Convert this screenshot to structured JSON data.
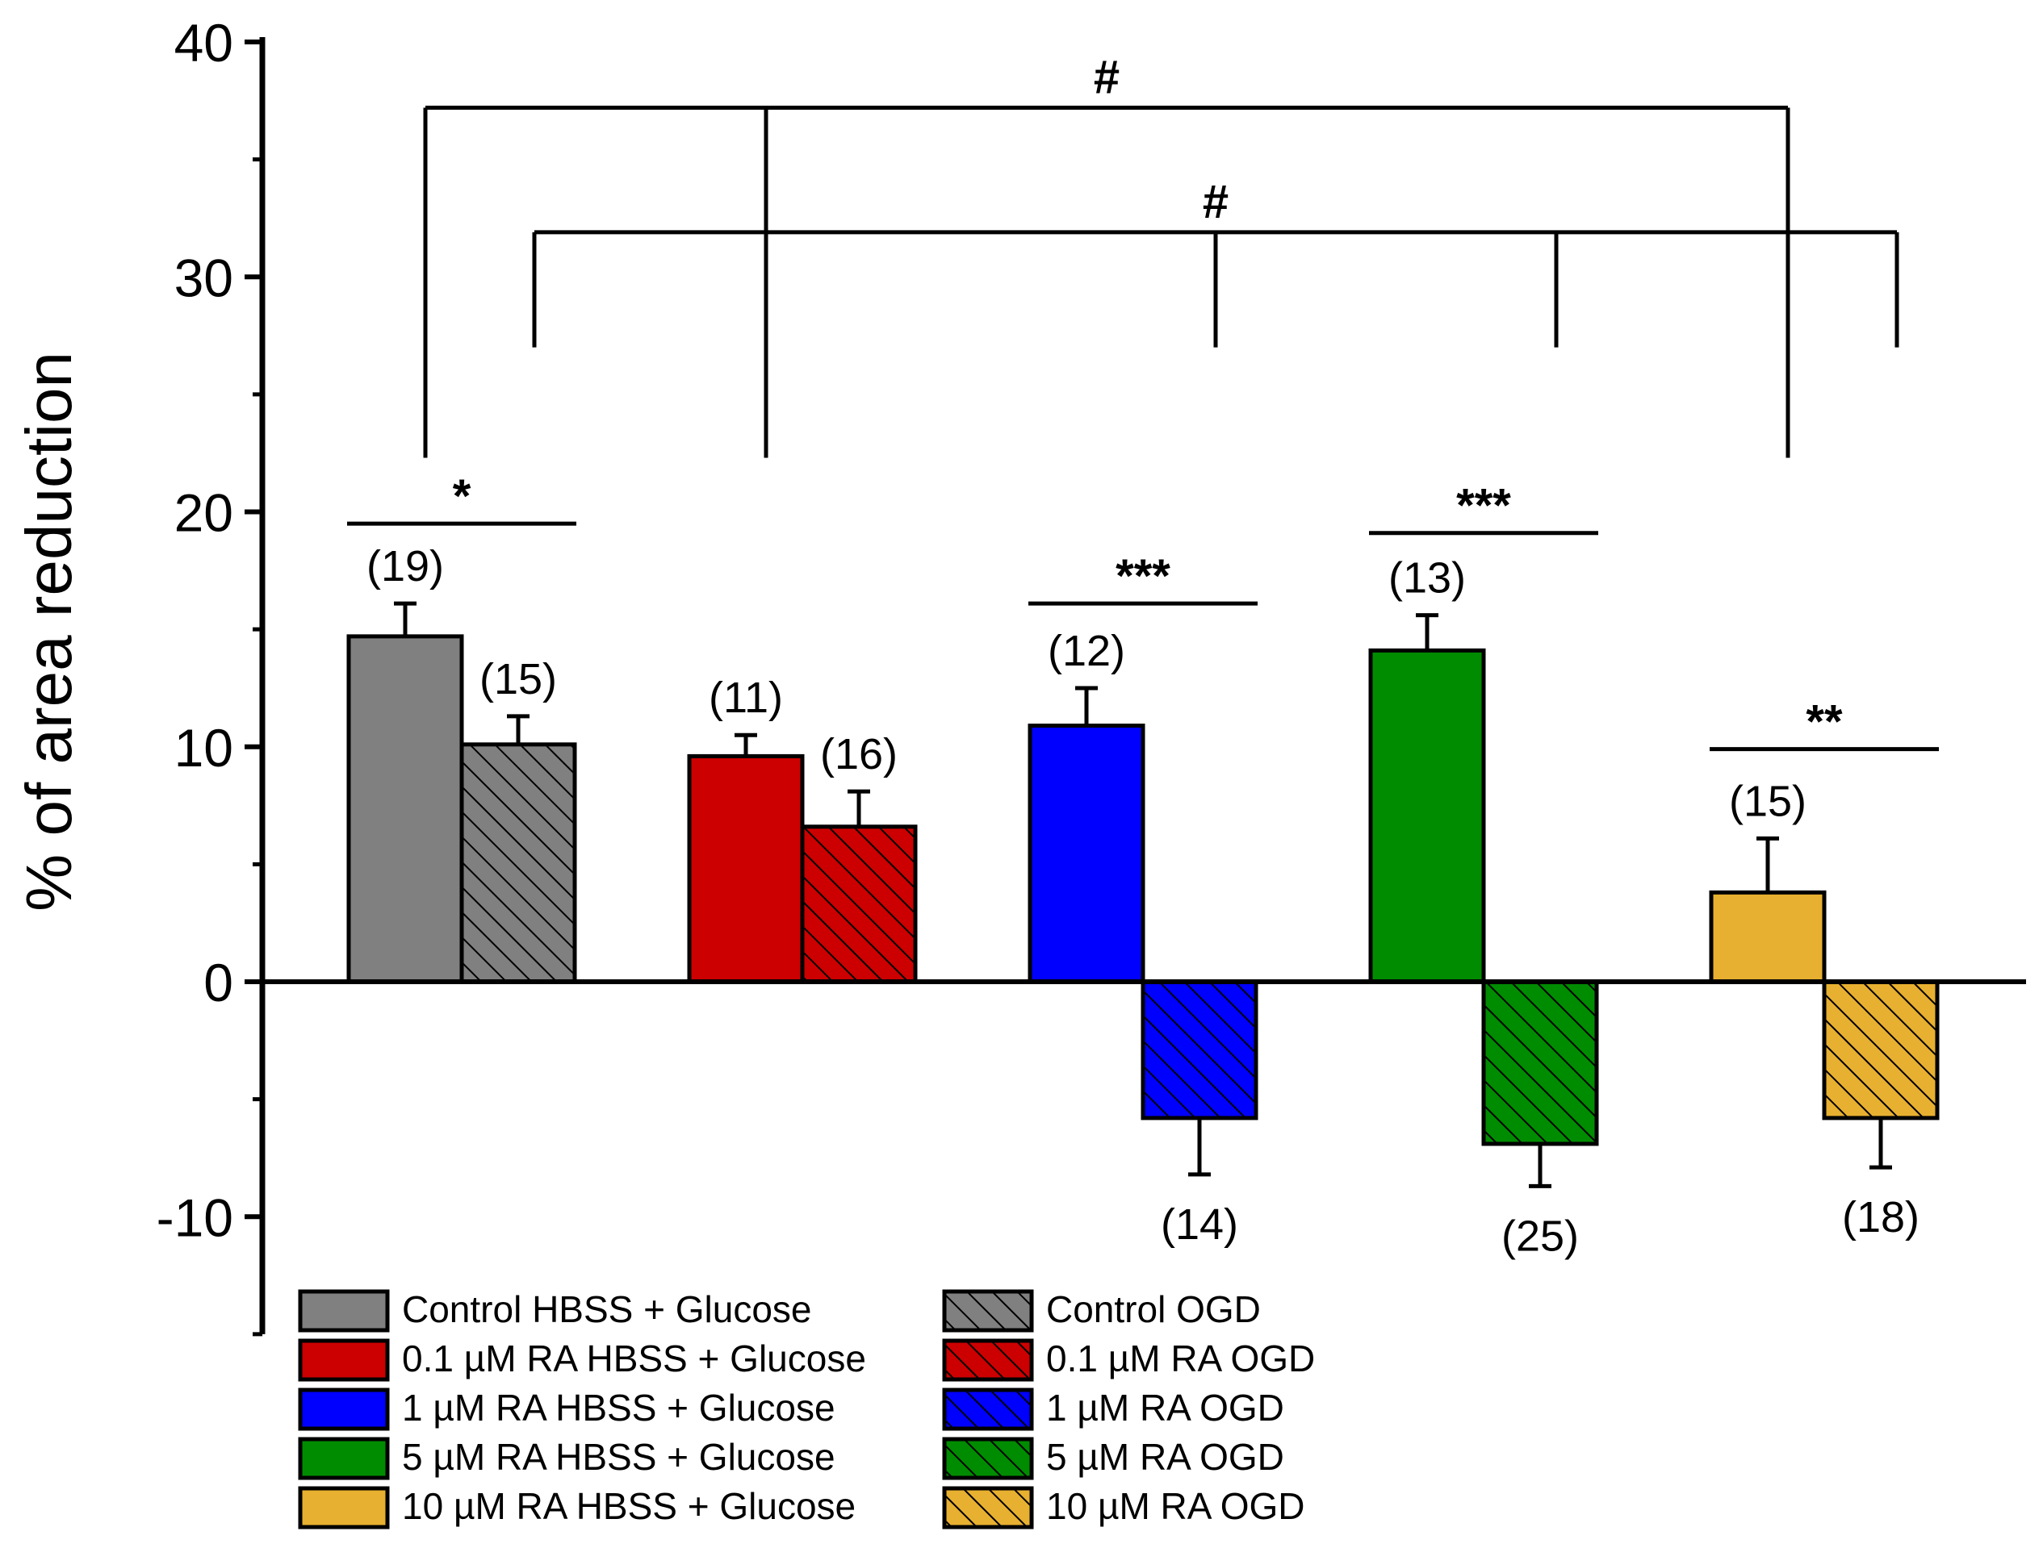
{
  "chart_data": {
    "type": "bar",
    "title": "",
    "xlabel": "",
    "ylabel": "% of area reduction",
    "ylim": [
      -15,
      40
    ],
    "yticks": [
      -10,
      0,
      10,
      20,
      30,
      40
    ],
    "ytick_labels": [
      "-10",
      "0",
      "10",
      "20",
      "30",
      "40"
    ],
    "grid": false,
    "legend_position": "bottom-left",
    "groups": [
      "Control",
      "0.1 µM RA",
      "1 µM RA",
      "5 µM RA",
      "10 µM RA"
    ],
    "series": [
      {
        "name": "HBSS + Glucose",
        "pattern": "solid",
        "values": [
          14.7,
          9.6,
          10.9,
          14.1,
          3.8
        ],
        "errors": [
          1.4,
          0.9,
          1.6,
          1.5,
          2.3
        ],
        "n_labels": [
          "(19)",
          "(11)",
          "(12)",
          "(13)",
          "(15)"
        ]
      },
      {
        "name": "OGD",
        "pattern": "hatched",
        "values": [
          10.1,
          6.6,
          -5.8,
          -6.9,
          -5.8
        ],
        "errors": [
          1.2,
          1.5,
          2.4,
          1.8,
          2.1
        ],
        "n_labels": [
          "(15)",
          "(16)",
          "(14)",
          "(25)",
          "(18)"
        ]
      }
    ],
    "colors": [
      "#808080",
      "#cc0000",
      "#0000ff",
      "#008c00",
      "#e8b030"
    ],
    "significance_pairs": [
      {
        "group": 0,
        "label": "*",
        "y": 19.5
      },
      {
        "group": 2,
        "label": "***",
        "y": 16.1
      },
      {
        "group": 3,
        "label": "***",
        "y": 19.1
      },
      {
        "group": 4,
        "label": "**",
        "y": 9.9
      }
    ],
    "brackets": [
      {
        "label": "#",
        "y": 37.2,
        "series": 0,
        "groups": [
          0,
          1,
          4
        ],
        "drop_to": 22.3
      },
      {
        "label": "#",
        "y": 31.9,
        "series": 1,
        "groups": [
          0,
          2,
          3,
          4
        ],
        "drop_to": 27.0
      }
    ],
    "legend": [
      {
        "label": "Control HBSS + Glucose",
        "color": "#808080",
        "pattern": "solid"
      },
      {
        "label": " Control OGD",
        "color": "#808080",
        "pattern": "hatched"
      },
      {
        "label": "0.1 µM RA HBSS + Glucose",
        "color": "#cc0000",
        "pattern": "solid"
      },
      {
        "label": "0.1 µM RA OGD",
        "color": "#cc0000",
        "pattern": "hatched"
      },
      {
        "label": "1 µM RA HBSS + Glucose",
        "color": "#0000ff",
        "pattern": "solid"
      },
      {
        "label": "1 µM RA OGD",
        "color": "#0000ff",
        "pattern": "hatched"
      },
      {
        "label": "5 µM RA HBSS + Glucose",
        "color": "#008c00",
        "pattern": "solid"
      },
      {
        "label": "5 µM RA OGD",
        "color": "#008c00",
        "pattern": "hatched"
      },
      {
        "label": "10 µM RA HBSS + Glucose",
        "color": "#e8b030",
        "pattern": "solid"
      },
      {
        "label": "10 µM RA OGD",
        "color": "#e8b030",
        "pattern": "hatched"
      }
    ]
  }
}
